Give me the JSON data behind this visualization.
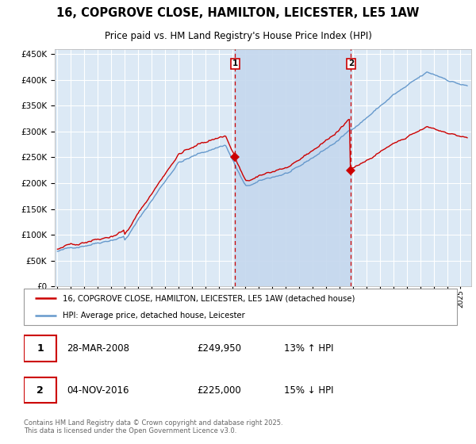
{
  "title_line1": "16, COPGROVE CLOSE, HAMILTON, LEICESTER, LE5 1AW",
  "title_line2": "Price paid vs. HM Land Registry's House Price Index (HPI)",
  "background_color": "#ffffff",
  "plot_bg_color": "#dce9f5",
  "shade_color": "#c5d8ee",
  "grid_color": "#ffffff",
  "line1_color": "#cc0000",
  "line2_color": "#6699cc",
  "vline_color": "#cc0000",
  "marker1_color": "#cc0000",
  "marker2_color": "#cc0000",
  "ylim": [
    0,
    460000
  ],
  "yticks": [
    0,
    50000,
    100000,
    150000,
    200000,
    250000,
    300000,
    350000,
    400000,
    450000
  ],
  "xlim_left": 1994.8,
  "xlim_right": 2025.8,
  "event1_year": 2008.23,
  "event2_year": 2016.84,
  "legend_label1": "16, COPGROVE CLOSE, HAMILTON, LEICESTER, LE5 1AW (detached house)",
  "legend_label2": "HPI: Average price, detached house, Leicester",
  "table_date1": "28-MAR-2008",
  "table_price1": "£249,950",
  "table_hpi1": "13% ↑ HPI",
  "table_date2": "04-NOV-2016",
  "table_price2": "£225,000",
  "table_hpi2": "15% ↓ HPI",
  "footer": "Contains HM Land Registry data © Crown copyright and database right 2025.\nThis data is licensed under the Open Government Licence v3.0."
}
